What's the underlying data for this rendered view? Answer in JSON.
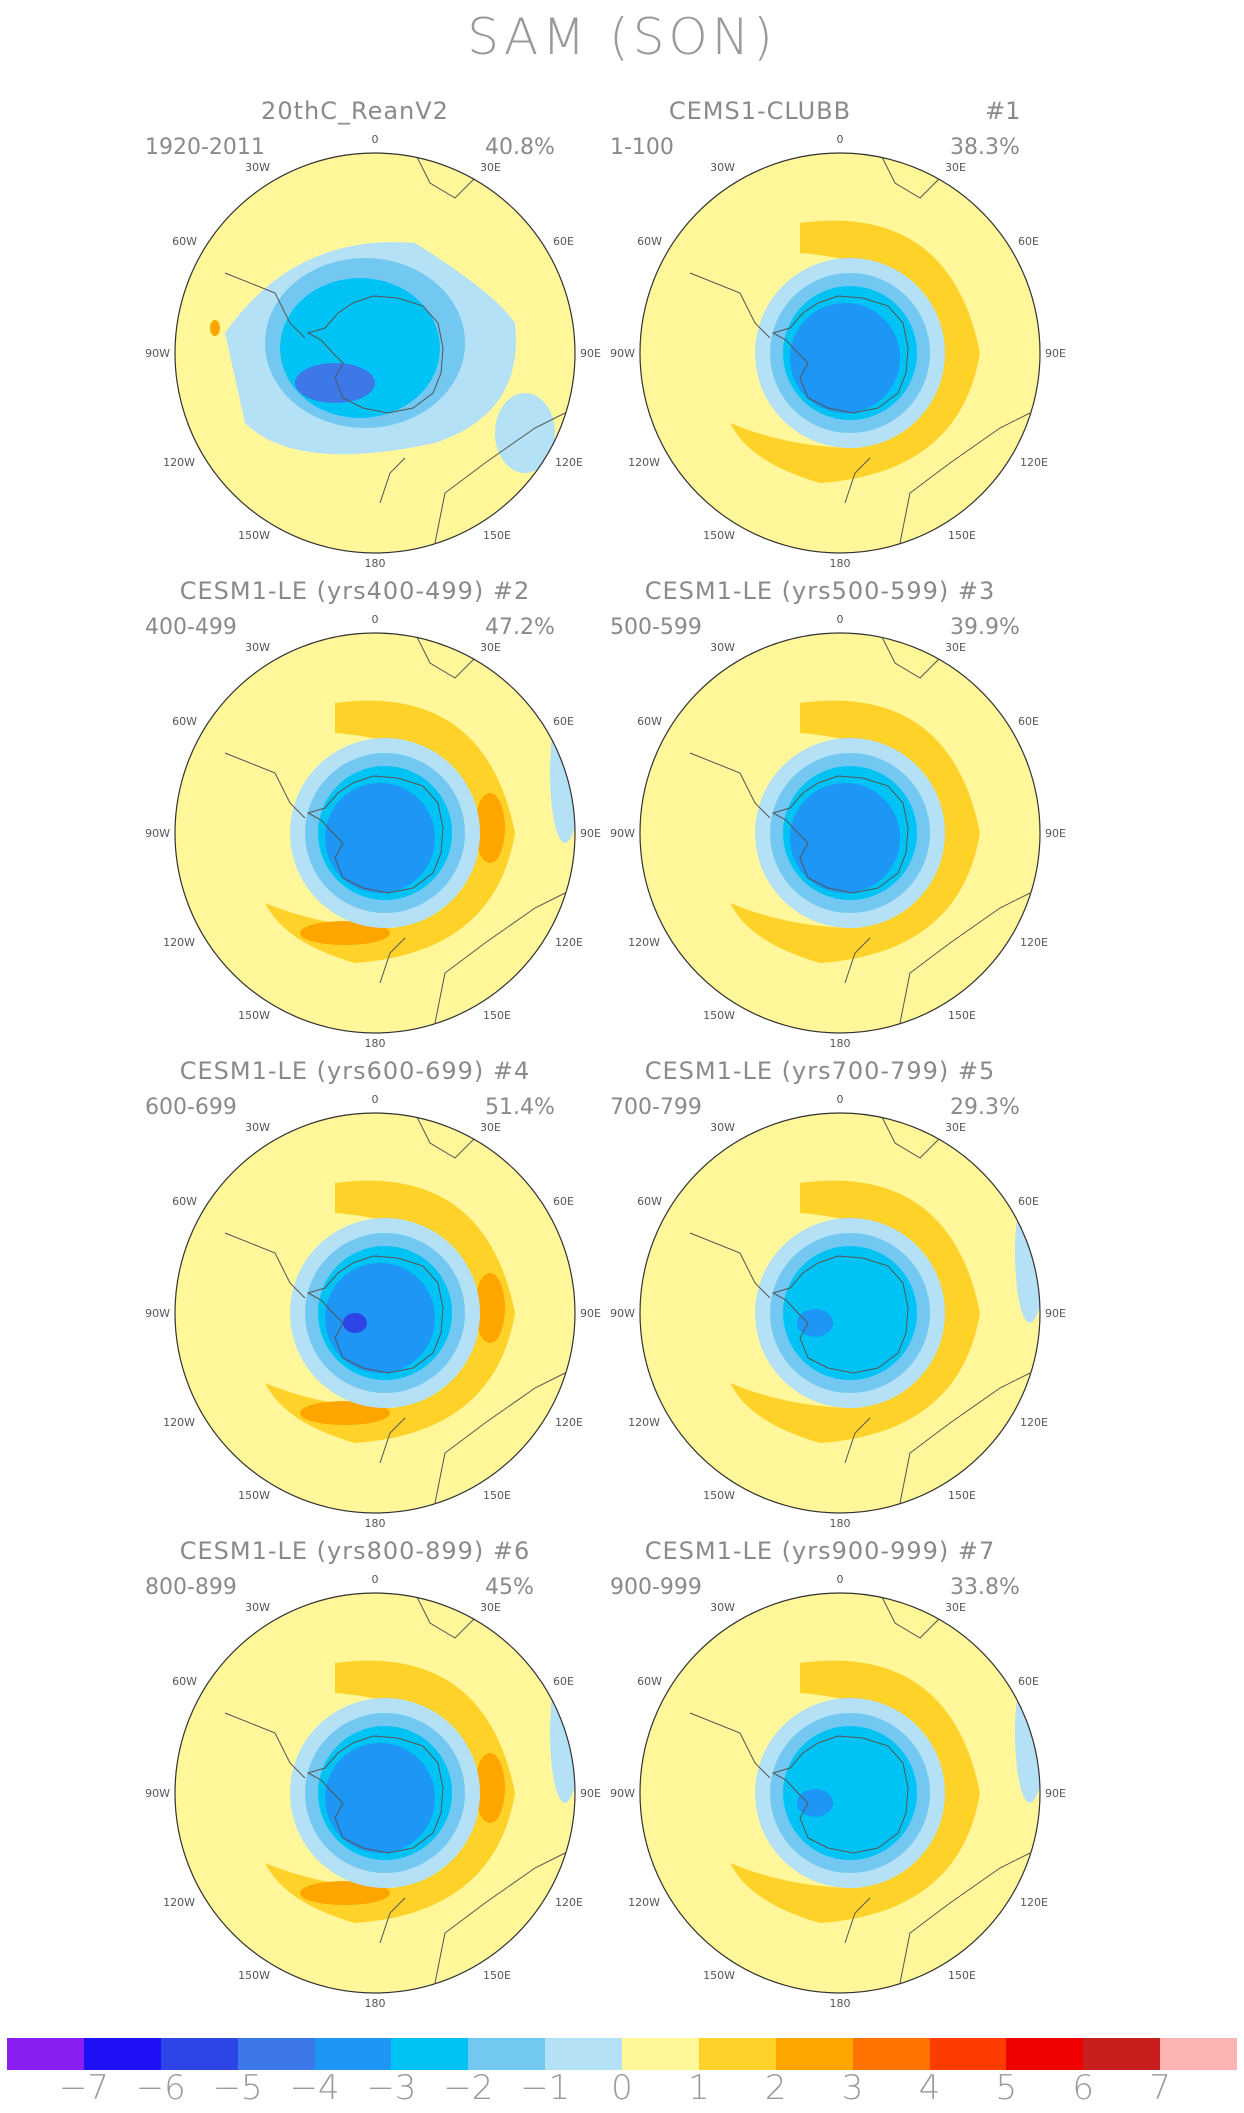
{
  "title": "SAM (SON)",
  "panels": [
    {
      "title": "20thC_ReanV2",
      "number": "",
      "years": "1920-2011",
      "percent": "40.8%",
      "pattern": "obs"
    },
    {
      "title": "CEMS1-CLUBB",
      "number": "#1",
      "years": "1-100",
      "percent": "38.3%",
      "pattern": "ringA"
    },
    {
      "title": "CESM1-LE (yrs400-499) #2",
      "number": "",
      "years": "400-499",
      "percent": "47.2%",
      "pattern": "ringB"
    },
    {
      "title": "CESM1-LE (yrs500-599) #3",
      "number": "",
      "years": "500-599",
      "percent": "39.9%",
      "pattern": "ringA"
    },
    {
      "title": "CESM1-LE (yrs600-699) #4",
      "number": "",
      "years": "600-699",
      "percent": "51.4%",
      "pattern": "ringC"
    },
    {
      "title": "CESM1-LE (yrs700-799) #5",
      "number": "",
      "years": "700-799",
      "percent": "29.3%",
      "pattern": "ringD"
    },
    {
      "title": "CESM1-LE (yrs800-899) #6",
      "number": "",
      "years": "800-899",
      "percent": "45%",
      "pattern": "ringB"
    },
    {
      "title": "CESM1-LE (yrs900-999) #7",
      "number": "",
      "years": "900-999",
      "percent": "33.8%",
      "pattern": "ringD"
    }
  ],
  "lon_labels": {
    "n": "0",
    "ne": "30E",
    "e1": "60E",
    "e": "90E",
    "e2": "120E",
    "se": "150E",
    "s": "180",
    "sw": "150W",
    "w2": "120W",
    "w": "90W",
    "w1": "60W",
    "nw": "30W"
  },
  "colorbar": {
    "colors": [
      "#8a1ef0",
      "#1e0ff5",
      "#2d45e6",
      "#3c78e8",
      "#1e96f5",
      "#00c3f5",
      "#72c8f0",
      "#b4e1f5",
      "#fff79a",
      "#ffd22a",
      "#ffa500",
      "#ff7300",
      "#ff3c00",
      "#f00000",
      "#c81e1e",
      "#ffb4b4"
    ],
    "labels": [
      "−7",
      "−6",
      "−5",
      "−4",
      "−3",
      "−2",
      "−1",
      "0",
      "1",
      "2",
      "3",
      "4",
      "5",
      "6",
      "7"
    ]
  }
}
